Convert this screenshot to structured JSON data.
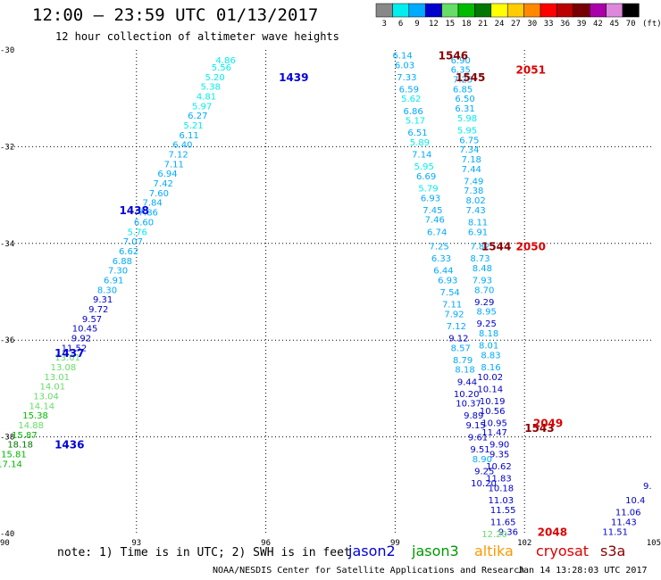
{
  "title": "12:00 – 23:59 UTC 01/13/2017",
  "subtitle": "12 hour collection of altimeter wave heights",
  "footer": {
    "note": "note: 1) Time is in UTC; 2) SWH is in feet",
    "credit": "NOAA/NESDIS Center for Satellite Applications and Research",
    "generated": "Jan 14 13:28:03 UTC 2017"
  },
  "satellites": [
    {
      "name": "jason2",
      "color": "#0000dd"
    },
    {
      "name": "jason3",
      "color": "#009900"
    },
    {
      "name": "altika",
      "color": "#ff9900"
    },
    {
      "name": "cryosat",
      "color": "#dd0000"
    },
    {
      "name": "s3a",
      "color": "#880000"
    }
  ],
  "color_scale": {
    "unit": "(ft)",
    "bins": [
      {
        "label": "3",
        "color": "#888888"
      },
      {
        "label": "6",
        "color": "#00eeee"
      },
      {
        "label": "9",
        "color": "#00aaff"
      },
      {
        "label": "12",
        "color": "#0000cc"
      },
      {
        "label": "15",
        "color": "#66dd66"
      },
      {
        "label": "18",
        "color": "#00bb00"
      },
      {
        "label": "21",
        "color": "#007700"
      },
      {
        "label": "24",
        "color": "#ffff00"
      },
      {
        "label": "27",
        "color": "#ffcc00"
      },
      {
        "label": "30",
        "color": "#ff8800"
      },
      {
        "label": "33",
        "color": "#ff0000"
      },
      {
        "label": "36",
        "color": "#bb0000"
      },
      {
        "label": "39",
        "color": "#770000"
      },
      {
        "label": "42",
        "color": "#aa00aa"
      },
      {
        "label": "45",
        "color": "#dd88dd"
      },
      {
        "label": "70",
        "color": "#000000"
      }
    ]
  },
  "chart_data": {
    "type": "scatter",
    "xlim": [
      90,
      105
    ],
    "ylim": [
      -40,
      -30
    ],
    "x_ticks": [
      "90",
      "93",
      "96",
      "99",
      "102",
      "105"
    ],
    "y_ticks": [
      "-30",
      "-32",
      "-34",
      "-36",
      "-38",
      "-40"
    ],
    "grid": true,
    "series": [
      {
        "name": "jason2",
        "color_key": "track-west",
        "time_labels": [
          {
            "text": "1439",
            "x": 96.3,
            "y": -30.55
          },
          {
            "text": "1438",
            "x": 92.6,
            "y": -33.3
          },
          {
            "text": "1437",
            "x": 91.1,
            "y": -36.25
          },
          {
            "text": "1436",
            "x": 91.1,
            "y": -38.15
          }
        ],
        "points": [
          {
            "x": 95.3,
            "y": -30.2,
            "v": "4.86"
          },
          {
            "x": 95.2,
            "y": -30.35,
            "v": "5.56"
          },
          {
            "x": 95.05,
            "y": -30.55,
            "v": "5.20"
          },
          {
            "x": 94.95,
            "y": -30.75,
            "v": "5.38"
          },
          {
            "x": 94.85,
            "y": -30.95,
            "v": "4.81"
          },
          {
            "x": 94.75,
            "y": -31.15,
            "v": "5.97"
          },
          {
            "x": 94.65,
            "y": -31.35,
            "v": "6.27"
          },
          {
            "x": 94.55,
            "y": -31.55,
            "v": "5.21"
          },
          {
            "x": 94.45,
            "y": -31.75,
            "v": "6.11"
          },
          {
            "x": 94.3,
            "y": -31.95,
            "v": "6.40"
          },
          {
            "x": 94.2,
            "y": -32.15,
            "v": "7.12"
          },
          {
            "x": 94.1,
            "y": -32.35,
            "v": "7.11"
          },
          {
            "x": 93.95,
            "y": -32.55,
            "v": "6.94"
          },
          {
            "x": 93.85,
            "y": -32.75,
            "v": "7.42"
          },
          {
            "x": 93.75,
            "y": -32.95,
            "v": "7.60"
          },
          {
            "x": 93.6,
            "y": -33.15,
            "v": "7.84"
          },
          {
            "x": 93.5,
            "y": -33.35,
            "v": "7.86"
          },
          {
            "x": 93.4,
            "y": -33.55,
            "v": "6.60"
          },
          {
            "x": 93.25,
            "y": -33.75,
            "v": "5.76"
          },
          {
            "x": 93.15,
            "y": -33.95,
            "v": "7.07"
          },
          {
            "x": 93.05,
            "y": -34.15,
            "v": "6.62"
          },
          {
            "x": 92.9,
            "y": -34.35,
            "v": "6.88"
          },
          {
            "x": 92.8,
            "y": -34.55,
            "v": "7.30"
          },
          {
            "x": 92.7,
            "y": -34.75,
            "v": "6.91"
          },
          {
            "x": 92.55,
            "y": -34.95,
            "v": "8.30"
          },
          {
            "x": 92.45,
            "y": -35.15,
            "v": "9.31"
          },
          {
            "x": 92.35,
            "y": -35.35,
            "v": "9.72"
          },
          {
            "x": 92.2,
            "y": -35.55,
            "v": "9.57"
          },
          {
            "x": 92.1,
            "y": -35.75,
            "v": "10.45"
          },
          {
            "x": 91.95,
            "y": -35.95,
            "v": "9.92"
          },
          {
            "x": 91.85,
            "y": -36.15,
            "v": "11.52"
          },
          {
            "x": 91.7,
            "y": -36.35,
            "v": "13.01"
          },
          {
            "x": 91.6,
            "y": -36.55,
            "v": "13.08"
          },
          {
            "x": 91.45,
            "y": -36.75,
            "v": "13.01"
          },
          {
            "x": 91.35,
            "y": -36.95,
            "v": "14.01"
          },
          {
            "x": 91.2,
            "y": -37.15,
            "v": "13.04"
          },
          {
            "x": 91.1,
            "y": -37.35,
            "v": "14.14"
          },
          {
            "x": 90.95,
            "y": -37.55,
            "v": "15.38"
          },
          {
            "x": 90.85,
            "y": -37.75,
            "v": "14.88"
          },
          {
            "x": 90.7,
            "y": -37.95,
            "v": "15.87"
          },
          {
            "x": 90.6,
            "y": -38.15,
            "v": "18.18"
          },
          {
            "x": 90.45,
            "y": -38.35,
            "v": "15.81"
          },
          {
            "x": 90.35,
            "y": -38.55,
            "v": "17.14"
          }
        ]
      },
      {
        "name": "s3a",
        "color_key": "track-middle",
        "time_labels": [
          {
            "text": "1546",
            "x": 100.0,
            "y": -30.1
          },
          {
            "text": "1545",
            "x": 100.4,
            "y": -30.55
          },
          {
            "text": "1544",
            "x": 101.0,
            "y": -34.05
          },
          {
            "text": "1543",
            "x": 102.0,
            "y": -37.8
          }
        ],
        "points": [
          {
            "x": 99.4,
            "y": -30.1,
            "v": "6.14"
          },
          {
            "x": 99.45,
            "y": -30.3,
            "v": "6.03"
          },
          {
            "x": 99.5,
            "y": -30.55,
            "v": "7.33"
          },
          {
            "x": 99.55,
            "y": -30.8,
            "v": "6.59"
          },
          {
            "x": 99.6,
            "y": -31.0,
            "v": "5.62"
          },
          {
            "x": 99.65,
            "y": -31.25,
            "v": "6.86"
          },
          {
            "x": 99.7,
            "y": -31.45,
            "v": "5.17"
          },
          {
            "x": 99.75,
            "y": -31.7,
            "v": "6.51"
          },
          {
            "x": 99.8,
            "y": -31.9,
            "v": "5.89"
          },
          {
            "x": 99.85,
            "y": -32.15,
            "v": "7.14"
          },
          {
            "x": 99.9,
            "y": -32.4,
            "v": "5.95"
          },
          {
            "x": 99.95,
            "y": -32.6,
            "v": "6.69"
          },
          {
            "x": 100.0,
            "y": -32.85,
            "v": "5.79"
          },
          {
            "x": 100.05,
            "y": -33.05,
            "v": "6.93"
          },
          {
            "x": 100.1,
            "y": -33.3,
            "v": "7.45"
          },
          {
            "x": 100.15,
            "y": -33.5,
            "v": "7.46"
          },
          {
            "x": 100.2,
            "y": -33.75,
            "v": "6.74"
          },
          {
            "x": 100.25,
            "y": -34.05,
            "v": "7.25"
          },
          {
            "x": 100.3,
            "y": -34.3,
            "v": "6.33"
          },
          {
            "x": 100.35,
            "y": -34.55,
            "v": "6.44"
          },
          {
            "x": 100.45,
            "y": -34.75,
            "v": "6.93"
          },
          {
            "x": 100.5,
            "y": -35.0,
            "v": "7.54"
          },
          {
            "x": 100.55,
            "y": -35.25,
            "v": "7.11"
          },
          {
            "x": 100.6,
            "y": -35.45,
            "v": "7.92"
          },
          {
            "x": 100.65,
            "y": -35.7,
            "v": "7.12"
          },
          {
            "x": 100.7,
            "y": -35.95,
            "v": "9.12"
          },
          {
            "x": 100.75,
            "y": -36.15,
            "v": "8.57"
          },
          {
            "x": 100.8,
            "y": -36.4,
            "v": "8.79"
          },
          {
            "x": 100.85,
            "y": -36.6,
            "v": "8.18"
          },
          {
            "x": 100.9,
            "y": -36.85,
            "v": "9.44"
          },
          {
            "x": 100.95,
            "y": -37.1,
            "v": "10.20"
          },
          {
            "x": 101.0,
            "y": -37.3,
            "v": "10.37"
          },
          {
            "x": 101.05,
            "y": -37.55,
            "v": "9.89"
          },
          {
            "x": 101.1,
            "y": -37.75,
            "v": "9.15"
          },
          {
            "x": 101.15,
            "y": -38.0,
            "v": "9.61"
          },
          {
            "x": 101.2,
            "y": -38.25,
            "v": "9.51"
          },
          {
            "x": 101.25,
            "y": -38.45,
            "v": "8.90"
          },
          {
            "x": 101.3,
            "y": -38.7,
            "v": "9.25"
          },
          {
            "x": 101.35,
            "y": -38.95,
            "v": "10.20"
          }
        ]
      },
      {
        "name": "cryosat",
        "color_key": "track-east",
        "time_labels": [
          {
            "text": "2051",
            "x": 101.8,
            "y": -30.4
          },
          {
            "text": "2050",
            "x": 101.8,
            "y": -34.05
          },
          {
            "text": "2049",
            "x": 102.2,
            "y": -37.7
          },
          {
            "text": "2048",
            "x": 102.3,
            "y": -39.95
          }
        ],
        "points": [
          {
            "x": 100.75,
            "y": -30.2,
            "v": "6.90"
          },
          {
            "x": 100.75,
            "y": -30.4,
            "v": "6.35"
          },
          {
            "x": 100.8,
            "y": -30.6,
            "v": "7.25"
          },
          {
            "x": 100.8,
            "y": -30.8,
            "v": "6.85"
          },
          {
            "x": 100.85,
            "y": -31.0,
            "v": "6.50"
          },
          {
            "x": 100.85,
            "y": -31.2,
            "v": "6.31"
          },
          {
            "x": 100.9,
            "y": -31.4,
            "v": "5.98"
          },
          {
            "x": 100.9,
            "y": -31.65,
            "v": "5.95"
          },
          {
            "x": 100.95,
            "y": -31.85,
            "v": "6.75"
          },
          {
            "x": 100.95,
            "y": -32.05,
            "v": "7.34"
          },
          {
            "x": 101.0,
            "y": -32.25,
            "v": "7.18"
          },
          {
            "x": 101.0,
            "y": -32.45,
            "v": "7.44"
          },
          {
            "x": 101.05,
            "y": -32.7,
            "v": "7.49"
          },
          {
            "x": 101.05,
            "y": -32.9,
            "v": "7.38"
          },
          {
            "x": 101.1,
            "y": -33.1,
            "v": "8.02"
          },
          {
            "x": 101.1,
            "y": -33.3,
            "v": "7.43"
          },
          {
            "x": 101.15,
            "y": -33.55,
            "v": "8.11"
          },
          {
            "x": 101.15,
            "y": -33.75,
            "v": "6.91"
          },
          {
            "x": 101.2,
            "y": -34.05,
            "v": "7.82"
          },
          {
            "x": 101.2,
            "y": -34.3,
            "v": "8.73"
          },
          {
            "x": 101.25,
            "y": -34.5,
            "v": "8.48"
          },
          {
            "x": 101.25,
            "y": -34.75,
            "v": "7.93"
          },
          {
            "x": 101.3,
            "y": -34.95,
            "v": "8.70"
          },
          {
            "x": 101.3,
            "y": -35.2,
            "v": "9.29"
          },
          {
            "x": 101.35,
            "y": -35.4,
            "v": "8.95"
          },
          {
            "x": 101.35,
            "y": -35.65,
            "v": "9.25"
          },
          {
            "x": 101.4,
            "y": -35.85,
            "v": "8.18"
          },
          {
            "x": 101.4,
            "y": -36.1,
            "v": "8.01"
          },
          {
            "x": 101.45,
            "y": -36.3,
            "v": "8.83"
          },
          {
            "x": 101.45,
            "y": -36.55,
            "v": "8.16"
          },
          {
            "x": 101.5,
            "y": -36.75,
            "v": "10.02"
          },
          {
            "x": 101.5,
            "y": -37.0,
            "v": "10.14"
          },
          {
            "x": 101.55,
            "y": -37.25,
            "v": "10.19"
          },
          {
            "x": 101.55,
            "y": -37.45,
            "v": "10.56"
          },
          {
            "x": 101.6,
            "y": -37.7,
            "v": "10.95"
          },
          {
            "x": 101.6,
            "y": -37.9,
            "v": "11.47"
          },
          {
            "x": 101.65,
            "y": -38.15,
            "v": "9.90"
          },
          {
            "x": 101.65,
            "y": -38.35,
            "v": "9.35"
          },
          {
            "x": 101.7,
            "y": -38.6,
            "v": "10.62"
          },
          {
            "x": 101.7,
            "y": -38.85,
            "v": "11.83"
          },
          {
            "x": 101.75,
            "y": -39.05,
            "v": "10.18"
          },
          {
            "x": 101.75,
            "y": -39.3,
            "v": "11.03"
          },
          {
            "x": 101.8,
            "y": -39.5,
            "v": "11.55"
          },
          {
            "x": 101.8,
            "y": -39.75,
            "v": "11.65"
          },
          {
            "x": 101.85,
            "y": -39.95,
            "v": "9.36"
          },
          {
            "x": 101.6,
            "y": -40.0,
            "v": "12.20"
          }
        ]
      },
      {
        "name": "jason2",
        "color_key": "track-far-east",
        "time_labels": [],
        "points": [
          {
            "x": 104.95,
            "y": -39.0,
            "v": "9."
          },
          {
            "x": 104.8,
            "y": -39.3,
            "v": "10.4"
          },
          {
            "x": 104.7,
            "y": -39.55,
            "v": "11.06"
          },
          {
            "x": 104.6,
            "y": -39.75,
            "v": "11.43"
          },
          {
            "x": 104.4,
            "y": -39.95,
            "v": "11.51"
          }
        ]
      }
    ]
  }
}
